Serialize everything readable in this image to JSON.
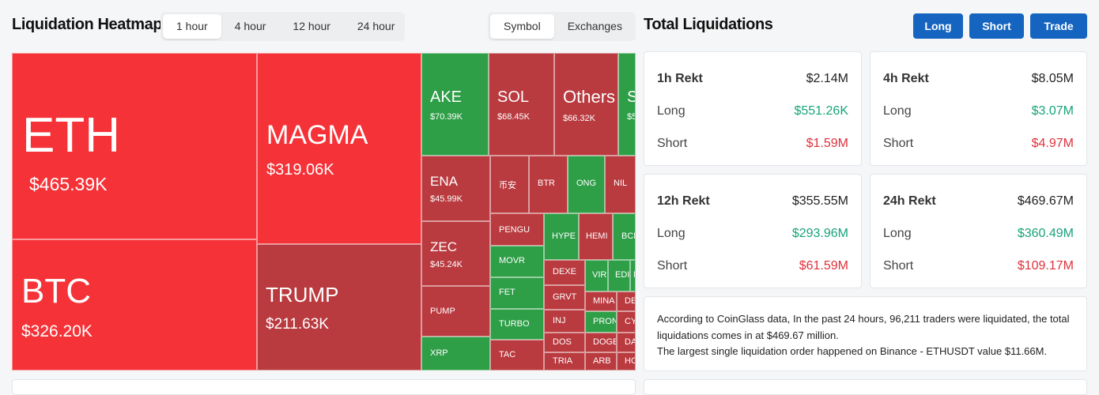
{
  "header": {
    "heatmap_title": "Liquidation Heatmap",
    "timeframes": [
      "1 hour",
      "4 hour",
      "12 hour",
      "24 hour"
    ],
    "active_timeframe": "1 hour",
    "views": [
      "Symbol",
      "Exchanges"
    ],
    "active_view": "Symbol",
    "total_title": "Total Liquidations",
    "long_button": "Long",
    "short_button": "Short",
    "trade_button": "Trade"
  },
  "heatmap": {
    "tiles": [
      {
        "symbol": "ETH",
        "value": "$465.39K"
      },
      {
        "symbol": "BTC",
        "value": "$326.20K"
      },
      {
        "symbol": "MAGMA",
        "value": "$319.06K"
      },
      {
        "symbol": "TRUMP",
        "value": "$211.63K"
      },
      {
        "symbol": "AKE",
        "value": "$70.39K"
      },
      {
        "symbol": "SOL",
        "value": "$68.45K"
      },
      {
        "symbol": "Others",
        "value": "$66.32K"
      },
      {
        "symbol": "S",
        "value": "$5"
      },
      {
        "symbol": "ENA",
        "value": "$45.99K"
      },
      {
        "symbol": "ZEC",
        "value": "$45.24K"
      },
      {
        "symbol": "PUMP",
        "value": ""
      },
      {
        "symbol": "XRP",
        "value": ""
      },
      {
        "symbol": "币安",
        "value": ""
      },
      {
        "symbol": "BTR",
        "value": ""
      },
      {
        "symbol": "ONG",
        "value": ""
      },
      {
        "symbol": "NIL",
        "value": ""
      },
      {
        "symbol": "PENGU",
        "value": ""
      },
      {
        "symbol": "HYPE",
        "value": ""
      },
      {
        "symbol": "HEMI",
        "value": ""
      },
      {
        "symbol": "BCH",
        "value": ""
      },
      {
        "symbol": "MOVR",
        "value": ""
      },
      {
        "symbol": "FET",
        "value": ""
      },
      {
        "symbol": "TURBO",
        "value": ""
      },
      {
        "symbol": "TAC",
        "value": ""
      },
      {
        "symbol": "DEXE",
        "value": ""
      },
      {
        "symbol": "GRVT",
        "value": ""
      },
      {
        "symbol": "INJ",
        "value": ""
      },
      {
        "symbol": "DOS",
        "value": ""
      },
      {
        "symbol": "TRIA",
        "value": ""
      },
      {
        "symbol": "VIR",
        "value": ""
      },
      {
        "symbol": "EDI",
        "value": ""
      },
      {
        "symbol": "MINA",
        "value": ""
      },
      {
        "symbol": "PRON",
        "value": ""
      },
      {
        "symbol": "DOGE",
        "value": ""
      },
      {
        "symbol": "ARB",
        "value": ""
      },
      {
        "symbol": "DE",
        "value": ""
      },
      {
        "symbol": "CY",
        "value": ""
      },
      {
        "symbol": "DA",
        "value": ""
      },
      {
        "symbol": "HO",
        "value": ""
      }
    ]
  },
  "stats": [
    {
      "title": "1h Rekt",
      "total": "$2.14M",
      "long_label": "Long",
      "long": "$551.26K",
      "short_label": "Short",
      "short": "$1.59M"
    },
    {
      "title": "4h Rekt",
      "total": "$8.05M",
      "long_label": "Long",
      "long": "$3.07M",
      "short_label": "Short",
      "short": "$4.97M"
    },
    {
      "title": "12h Rekt",
      "total": "$355.55M",
      "long_label": "Long",
      "long": "$293.96M",
      "short_label": "Short",
      "short": "$61.59M"
    },
    {
      "title": "24h Rekt",
      "total": "$469.67M",
      "long_label": "Long",
      "long": "$360.49M",
      "short_label": "Short",
      "short": "$109.17M"
    }
  ],
  "info": {
    "line1": "According to CoinGlass data, In the past 24 hours, 96,211 traders were liquidated, the total liquidations comes in at $469.67 million.",
    "line2": "The largest single liquidation order happened on Binance - ETHUSDT value $11.66M."
  },
  "colors": {
    "bright_red": "#f53238",
    "dark_red": "#b93a3f",
    "green": "#2e9e47",
    "button_blue": "#1565c0",
    "positive": "#17a37a",
    "negative": "#e0313c"
  }
}
